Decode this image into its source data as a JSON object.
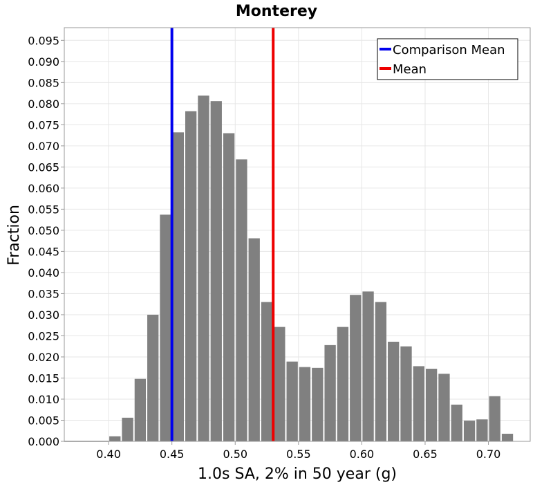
{
  "chart_data": {
    "type": "bar",
    "title": "Monterey",
    "xlabel": "1.0s SA, 2% in 50 year (g)",
    "ylabel": "Fraction",
    "xlim": [
      0.365,
      0.733
    ],
    "ylim": [
      0.0,
      0.098
    ],
    "grid": true,
    "bin_width": 0.01,
    "x_ticks": [
      "0.40",
      "0.45",
      "0.50",
      "0.55",
      "0.60",
      "0.65",
      "0.70"
    ],
    "y_ticks": [
      "0.000",
      "0.005",
      "0.010",
      "0.015",
      "0.020",
      "0.025",
      "0.030",
      "0.035",
      "0.040",
      "0.045",
      "0.050",
      "0.055",
      "0.060",
      "0.065",
      "0.070",
      "0.075",
      "0.080",
      "0.085",
      "0.090",
      "0.095"
    ],
    "bins": [
      {
        "x": 0.405,
        "value": 0.0012
      },
      {
        "x": 0.415,
        "value": 0.0056
      },
      {
        "x": 0.425,
        "value": 0.0148
      },
      {
        "x": 0.435,
        "value": 0.03
      },
      {
        "x": 0.445,
        "value": 0.0537
      },
      {
        "x": 0.455,
        "value": 0.0732
      },
      {
        "x": 0.465,
        "value": 0.0782
      },
      {
        "x": 0.475,
        "value": 0.0819
      },
      {
        "x": 0.485,
        "value": 0.0806
      },
      {
        "x": 0.495,
        "value": 0.073
      },
      {
        "x": 0.505,
        "value": 0.0668
      },
      {
        "x": 0.515,
        "value": 0.0481
      },
      {
        "x": 0.525,
        "value": 0.033
      },
      {
        "x": 0.535,
        "value": 0.0271
      },
      {
        "x": 0.545,
        "value": 0.0189
      },
      {
        "x": 0.555,
        "value": 0.0176
      },
      {
        "x": 0.565,
        "value": 0.0174
      },
      {
        "x": 0.575,
        "value": 0.0228
      },
      {
        "x": 0.585,
        "value": 0.0271
      },
      {
        "x": 0.595,
        "value": 0.0347
      },
      {
        "x": 0.605,
        "value": 0.0355
      },
      {
        "x": 0.615,
        "value": 0.033
      },
      {
        "x": 0.625,
        "value": 0.0236
      },
      {
        "x": 0.635,
        "value": 0.0225
      },
      {
        "x": 0.645,
        "value": 0.0178
      },
      {
        "x": 0.655,
        "value": 0.0172
      },
      {
        "x": 0.665,
        "value": 0.016
      },
      {
        "x": 0.675,
        "value": 0.0087
      },
      {
        "x": 0.685,
        "value": 0.0049
      },
      {
        "x": 0.695,
        "value": 0.0052
      },
      {
        "x": 0.705,
        "value": 0.0107
      },
      {
        "x": 0.715,
        "value": 0.0018
      }
    ],
    "bar_color": "#808080",
    "lines": [
      {
        "name": "Comparison Mean",
        "x": 0.45,
        "color": "#0000ee"
      },
      {
        "name": "Mean",
        "x": 0.53,
        "color": "#ee0000"
      }
    ],
    "legend": {
      "position": "top-right",
      "entries": [
        {
          "label": "Comparison Mean",
          "color": "#0000ee"
        },
        {
          "label": "Mean",
          "color": "#ee0000"
        }
      ]
    }
  }
}
